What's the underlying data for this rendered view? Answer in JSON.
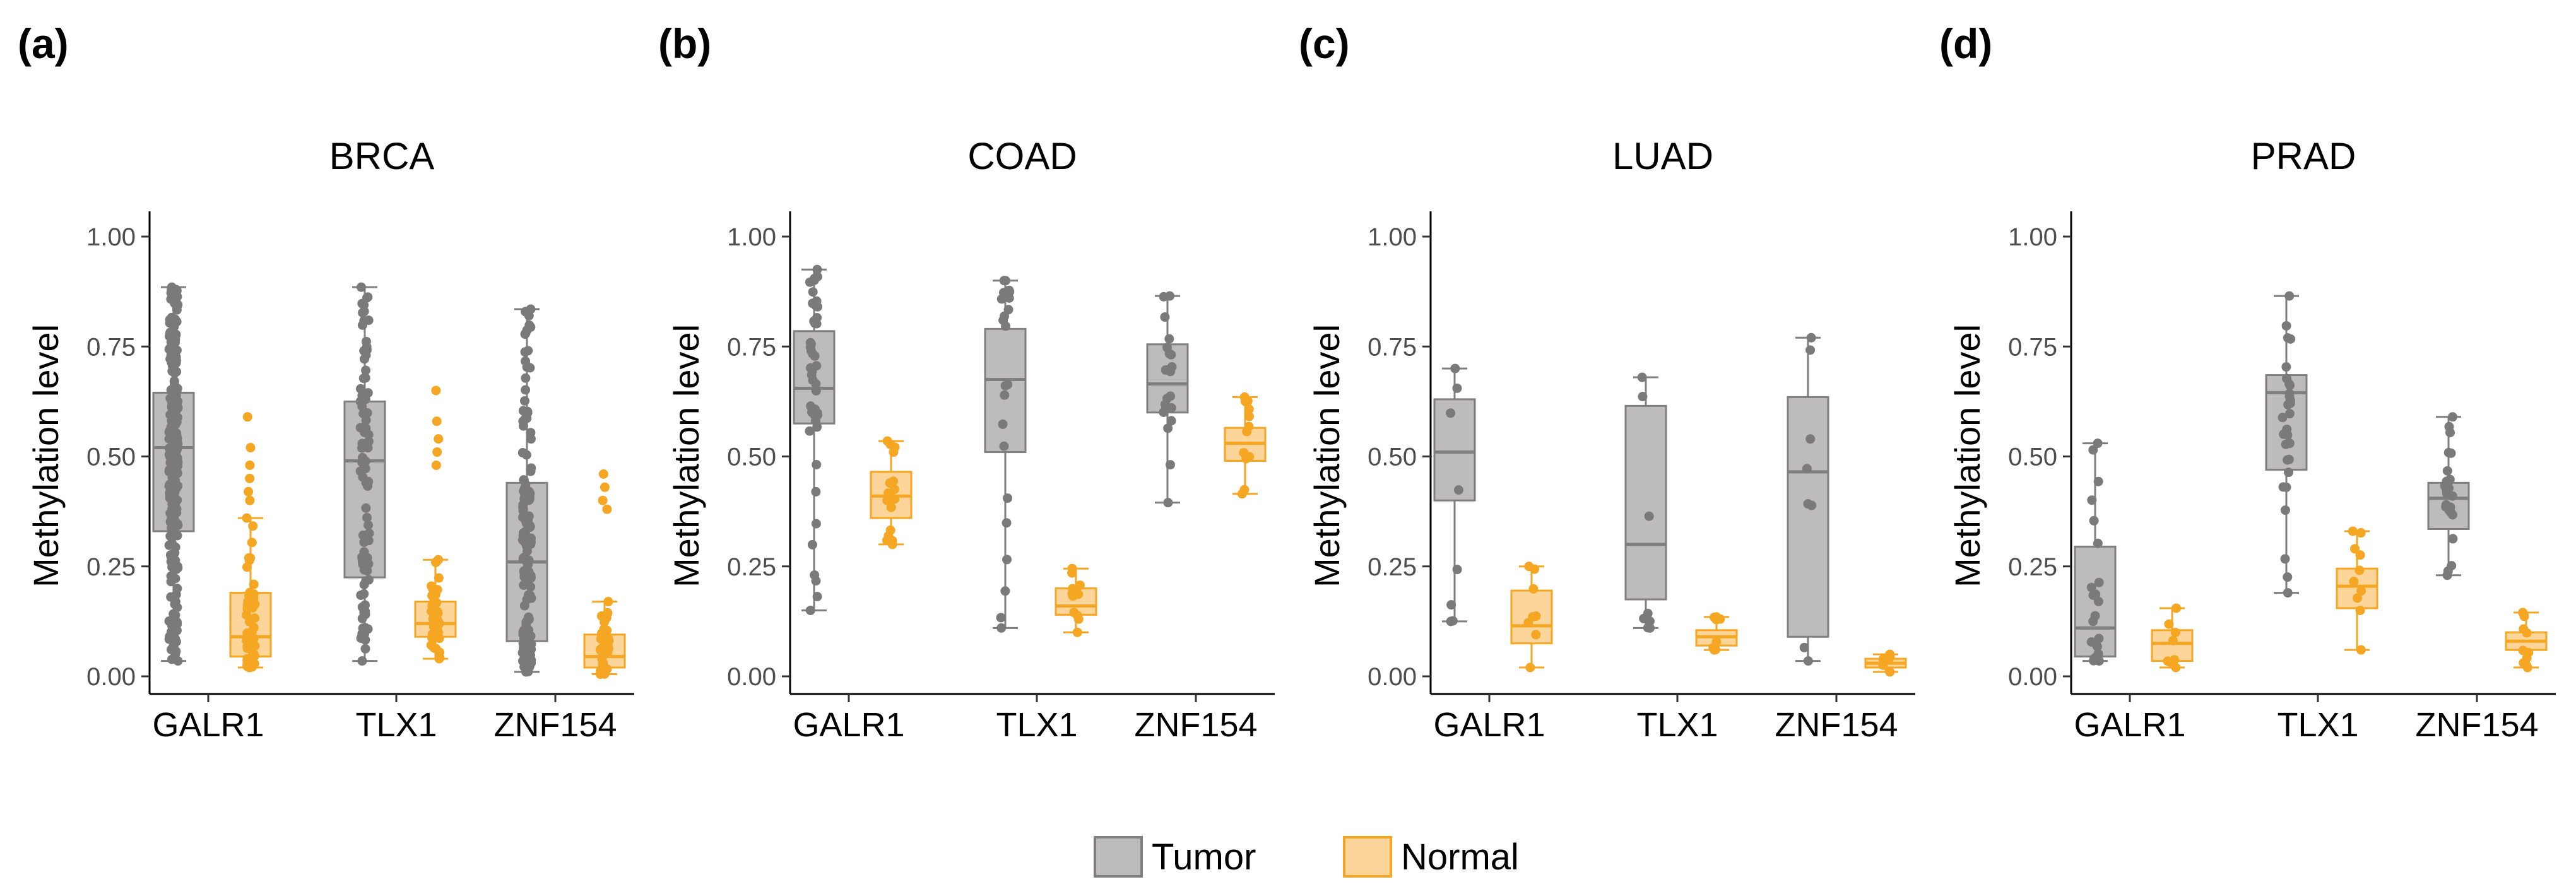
{
  "figure": {
    "legend": [
      {
        "key": "tumor",
        "label": "Tumor",
        "fill": "#bdbbbb",
        "stroke": "#7f7f7f"
      },
      {
        "key": "normal",
        "label": "Normal",
        "fill": "#fcd59a",
        "stroke": "#f5a623"
      }
    ]
  },
  "chart_data": [
    {
      "type": "box",
      "panel_label": "(a)",
      "title": "BRCA",
      "xlabel": "",
      "ylabel": "Methylation level",
      "ylim": [
        0,
        1
      ],
      "yticks": [
        "0.00",
        "0.25",
        "0.50",
        "0.75",
        "1.00"
      ],
      "categories": [
        "GALR1",
        "TLX1",
        "ZNF154"
      ],
      "series": [
        {
          "name": "Tumor",
          "boxes": [
            {
              "min": 0.035,
              "q1": 0.33,
              "median": 0.52,
              "q3": 0.645,
              "max": 0.885
            },
            {
              "min": 0.035,
              "q1": 0.225,
              "median": 0.49,
              "q3": 0.625,
              "max": 0.885
            },
            {
              "min": 0.01,
              "q1": 0.08,
              "median": 0.26,
              "q3": 0.44,
              "max": 0.835
            }
          ]
        },
        {
          "name": "Normal",
          "boxes": [
            {
              "min": 0.02,
              "q1": 0.045,
              "median": 0.09,
              "q3": 0.19,
              "max": 0.36
            },
            {
              "min": 0.04,
              "q1": 0.09,
              "median": 0.12,
              "q3": 0.17,
              "max": 0.265
            },
            {
              "min": 0.005,
              "q1": 0.02,
              "median": 0.045,
              "q3": 0.095,
              "max": 0.17
            }
          ]
        }
      ]
    },
    {
      "type": "box",
      "panel_label": "(b)",
      "title": "COAD",
      "xlabel": "",
      "ylabel": "Methylation level",
      "ylim": [
        0,
        1
      ],
      "yticks": [
        "0.00",
        "0.25",
        "0.50",
        "0.75",
        "1.00"
      ],
      "categories": [
        "GALR1",
        "TLX1",
        "ZNF154"
      ],
      "series": [
        {
          "name": "Tumor",
          "boxes": [
            {
              "min": 0.15,
              "q1": 0.575,
              "median": 0.655,
              "q3": 0.785,
              "max": 0.925
            },
            {
              "min": 0.11,
              "q1": 0.51,
              "median": 0.675,
              "q3": 0.79,
              "max": 0.9
            },
            {
              "min": 0.395,
              "q1": 0.6,
              "median": 0.665,
              "q3": 0.755,
              "max": 0.865
            }
          ]
        },
        {
          "name": "Normal",
          "boxes": [
            {
              "min": 0.3,
              "q1": 0.36,
              "median": 0.41,
              "q3": 0.465,
              "max": 0.535
            },
            {
              "min": 0.1,
              "q1": 0.14,
              "median": 0.16,
              "q3": 0.2,
              "max": 0.245
            },
            {
              "min": 0.415,
              "q1": 0.49,
              "median": 0.53,
              "q3": 0.565,
              "max": 0.635
            }
          ]
        }
      ]
    },
    {
      "type": "box",
      "panel_label": "(c)",
      "title": "LUAD",
      "xlabel": "",
      "ylabel": "Methylation level",
      "ylim": [
        0,
        1
      ],
      "yticks": [
        "0.00",
        "0.25",
        "0.50",
        "0.75",
        "1.00"
      ],
      "categories": [
        "GALR1",
        "TLX1",
        "ZNF154"
      ],
      "series": [
        {
          "name": "Tumor",
          "boxes": [
            {
              "min": 0.125,
              "q1": 0.4,
              "median": 0.51,
              "q3": 0.63,
              "max": 0.7
            },
            {
              "min": 0.11,
              "q1": 0.175,
              "median": 0.3,
              "q3": 0.615,
              "max": 0.68
            },
            {
              "min": 0.035,
              "q1": 0.09,
              "median": 0.465,
              "q3": 0.635,
              "max": 0.77
            }
          ]
        },
        {
          "name": "Normal",
          "boxes": [
            {
              "min": 0.02,
              "q1": 0.075,
              "median": 0.115,
              "q3": 0.195,
              "max": 0.25
            },
            {
              "min": 0.06,
              "q1": 0.07,
              "median": 0.09,
              "q3": 0.105,
              "max": 0.135
            },
            {
              "min": 0.01,
              "q1": 0.02,
              "median": 0.03,
              "q3": 0.04,
              "max": 0.05
            }
          ]
        }
      ]
    },
    {
      "type": "box",
      "panel_label": "(d)",
      "title": "PRAD",
      "xlabel": "",
      "ylabel": "Methylation level",
      "ylim": [
        0,
        1
      ],
      "yticks": [
        "0.00",
        "0.25",
        "0.50",
        "0.75",
        "1.00"
      ],
      "categories": [
        "GALR1",
        "TLX1",
        "ZNF154"
      ],
      "series": [
        {
          "name": "Tumor",
          "boxes": [
            {
              "min": 0.035,
              "q1": 0.045,
              "median": 0.11,
              "q3": 0.295,
              "max": 0.53
            },
            {
              "min": 0.19,
              "q1": 0.47,
              "median": 0.645,
              "q3": 0.685,
              "max": 0.865
            },
            {
              "min": 0.23,
              "q1": 0.335,
              "median": 0.405,
              "q3": 0.44,
              "max": 0.59
            }
          ]
        },
        {
          "name": "Normal",
          "boxes": [
            {
              "min": 0.02,
              "q1": 0.035,
              "median": 0.075,
              "q3": 0.105,
              "max": 0.155
            },
            {
              "min": 0.06,
              "q1": 0.155,
              "median": 0.205,
              "q3": 0.245,
              "max": 0.33
            },
            {
              "min": 0.02,
              "q1": 0.06,
              "median": 0.08,
              "q3": 0.1,
              "max": 0.145
            }
          ]
        }
      ]
    }
  ]
}
